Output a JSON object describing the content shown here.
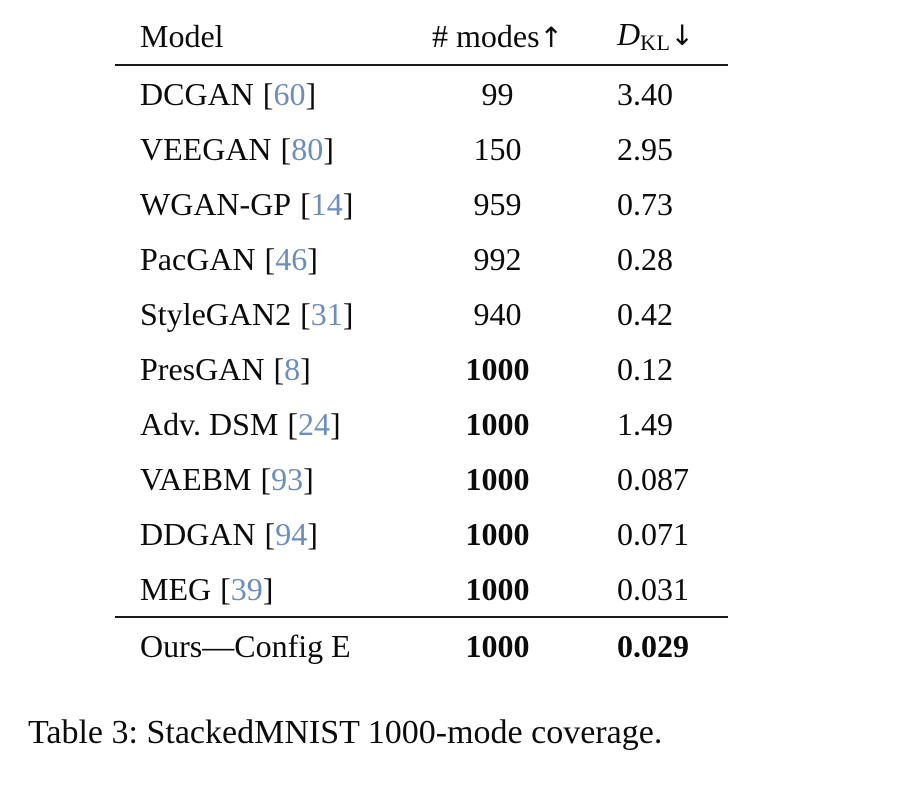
{
  "table": {
    "headers": {
      "model": "Model",
      "modes": "# modes",
      "modes_arrow": "↑",
      "dkl_symbol": "D",
      "dkl_subscript": "KL",
      "dkl_arrow": "↓"
    },
    "rows": [
      {
        "model": "DCGAN",
        "cite": "60",
        "modes": "99",
        "dkl": "3.40"
      },
      {
        "model": "VEEGAN",
        "cite": "80",
        "modes": "150",
        "dkl": "2.95"
      },
      {
        "model": "WGAN-GP",
        "cite": "14",
        "modes": "959",
        "dkl": "0.73"
      },
      {
        "model": "PacGAN",
        "cite": "46",
        "modes": "992",
        "dkl": "0.28"
      },
      {
        "model": "StyleGAN2",
        "cite": "31",
        "modes": "940",
        "dkl": "0.42"
      },
      {
        "model": "PresGAN",
        "cite": "8",
        "modes": "1000",
        "dkl": "0.12"
      },
      {
        "model": "Adv. DSM",
        "cite": "24",
        "modes": "1000",
        "dkl": "1.49"
      },
      {
        "model": "VAEBM",
        "cite": "93",
        "modes": "1000",
        "dkl": "0.087"
      },
      {
        "model": "DDGAN",
        "cite": "94",
        "modes": "1000",
        "dkl": "0.071"
      },
      {
        "model": "MEG",
        "cite": "39",
        "modes": "1000",
        "dkl": "0.031"
      }
    ],
    "final_row": {
      "model": "Ours—Config E",
      "modes": "1000",
      "dkl": "0.029"
    }
  },
  "caption": "Table 3: StackedMNIST 1000-mode coverage.",
  "colors": {
    "citation_blue": "#6c8ebf",
    "text": "#0b0b0b",
    "background": "#ffffff"
  }
}
